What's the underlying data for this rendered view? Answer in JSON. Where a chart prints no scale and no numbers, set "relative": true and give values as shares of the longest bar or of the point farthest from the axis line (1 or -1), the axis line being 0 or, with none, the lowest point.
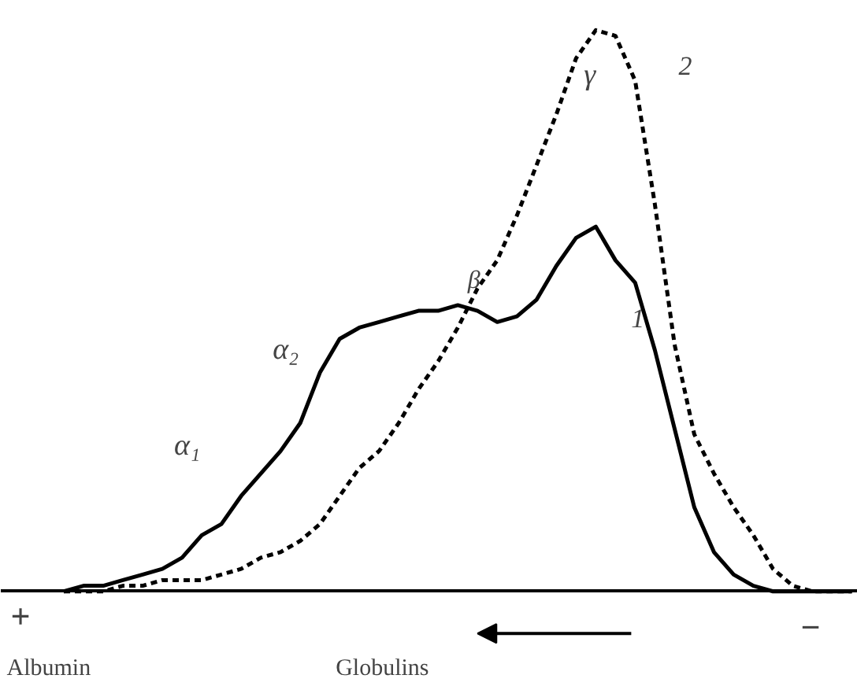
{
  "chart_data": {
    "type": "line",
    "relative": true,
    "categories": [
      null,
      null,
      null,
      null,
      null,
      null,
      null,
      null,
      null,
      null,
      null,
      null,
      null,
      null,
      null,
      null,
      null,
      null,
      null,
      null,
      null,
      null,
      null,
      null,
      null,
      null,
      null,
      null,
      null,
      null,
      null,
      null,
      null,
      null,
      null,
      null,
      null,
      null,
      null,
      null,
      null
    ],
    "series": [
      {
        "name": "1",
        "color": "#000000",
        "line_style": "solid",
        "values": [
          0,
          0.01,
          0.01,
          0.02,
          0.03,
          0.04,
          0.06,
          0.1,
          0.12,
          0.17,
          0.21,
          0.25,
          0.3,
          0.39,
          0.45,
          0.47,
          0.48,
          0.49,
          0.5,
          0.5,
          0.51,
          0.5,
          0.48,
          0.49,
          0.52,
          0.58,
          0.63,
          0.65,
          0.59,
          0.55,
          0.43,
          0.29,
          0.15,
          0.07,
          0.03,
          0.01,
          0,
          0,
          0,
          0,
          0
        ]
      },
      {
        "name": "2",
        "color": "#000000",
        "line_style": "dashed",
        "values": [
          0,
          0,
          0,
          0.01,
          0.01,
          0.02,
          0.02,
          0.02,
          0.03,
          0.04,
          0.06,
          0.07,
          0.09,
          0.12,
          0.17,
          0.22,
          0.25,
          0.3,
          0.36,
          0.41,
          0.47,
          0.54,
          0.59,
          0.67,
          0.76,
          0.85,
          0.95,
          1.0,
          0.99,
          0.91,
          0.69,
          0.44,
          0.28,
          0.21,
          0.15,
          0.1,
          0.04,
          0.01,
          0,
          0,
          0
        ]
      }
    ],
    "annotations": [
      "α₁",
      "α₂",
      "β",
      "γ",
      "+",
      "−",
      "Albumin",
      "Globulins"
    ],
    "grid": false,
    "legend": false,
    "marker": "none"
  }
}
